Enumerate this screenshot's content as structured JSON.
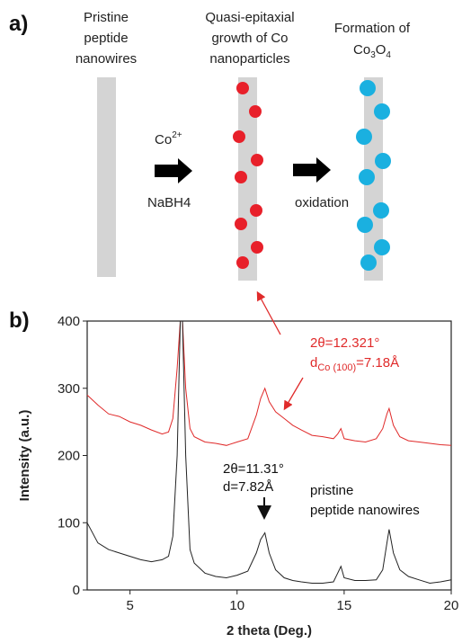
{
  "diagram": {
    "panel_label": "a)",
    "stages": [
      {
        "label_lines": [
          "Pristine",
          "peptide",
          "nanowires"
        ]
      },
      {
        "label_lines": [
          "Quasi-epitaxial",
          "growth of Co",
          "nanoparticles"
        ]
      },
      {
        "label_lines": [
          "Formation of"
        ],
        "formula": [
          "Co",
          "3",
          "O",
          "4"
        ]
      }
    ],
    "step1": {
      "ion": [
        "Co",
        "2+"
      ],
      "reducer": "NaBH4"
    },
    "step2": "oxidation"
  },
  "chart_data": {
    "type": "line",
    "panel_label": "b)",
    "x_label": "2 theta (Deg.)",
    "y_label": "Intensity (a.u.)",
    "xlim": [
      3,
      20
    ],
    "ylim": [
      0,
      400
    ],
    "xticks": [
      5,
      10,
      15,
      20
    ],
    "yticks": [
      0,
      100,
      200,
      300,
      400
    ],
    "x": [
      3,
      3.5,
      4,
      4.5,
      5,
      5.5,
      6,
      6.5,
      6.8,
      7.0,
      7.2,
      7.35,
      7.45,
      7.6,
      7.8,
      8.0,
      8.5,
      9,
      9.5,
      10,
      10.5,
      10.9,
      11.1,
      11.3,
      11.5,
      11.8,
      12.2,
      12.6,
      13,
      13.5,
      14,
      14.5,
      14.7,
      14.85,
      15,
      15.5,
      16,
      16.5,
      16.8,
      17.0,
      17.1,
      17.3,
      17.6,
      18,
      18.5,
      19,
      19.5,
      20
    ],
    "series": [
      {
        "color": "#e02a2a",
        "values": [
          290,
          275,
          262,
          258,
          250,
          245,
          238,
          232,
          235,
          255,
          330,
          400,
          400,
          300,
          240,
          228,
          220,
          218,
          215,
          220,
          225,
          260,
          285,
          300,
          280,
          265,
          255,
          245,
          238,
          230,
          228,
          225,
          232,
          240,
          225,
          222,
          220,
          225,
          240,
          262,
          270,
          245,
          228,
          222,
          220,
          218,
          216,
          215
        ]
      },
      {
        "color": "#222222",
        "values": [
          100,
          70,
          60,
          55,
          50,
          45,
          42,
          45,
          50,
          80,
          200,
          400,
          400,
          200,
          60,
          40,
          25,
          20,
          18,
          22,
          28,
          55,
          75,
          85,
          55,
          30,
          18,
          14,
          12,
          10,
          10,
          12,
          25,
          35,
          18,
          14,
          14,
          15,
          30,
          70,
          90,
          55,
          30,
          20,
          15,
          10,
          12,
          15
        ]
      }
    ],
    "annotations": [
      {
        "text": "2θ=12.321°",
        "color": "#e02a2a"
      },
      {
        "parts": [
          "d",
          "Co (100)",
          "=7.18Å"
        ],
        "color": "#e02a2a"
      },
      {
        "text": "2θ=11.31°",
        "color": "#111111"
      },
      {
        "text": "d=7.82Å",
        "color": "#111111"
      },
      {
        "text": "pristine",
        "color": "#111111"
      },
      {
        "text": "peptide nanowires",
        "color": "#111111"
      }
    ]
  }
}
